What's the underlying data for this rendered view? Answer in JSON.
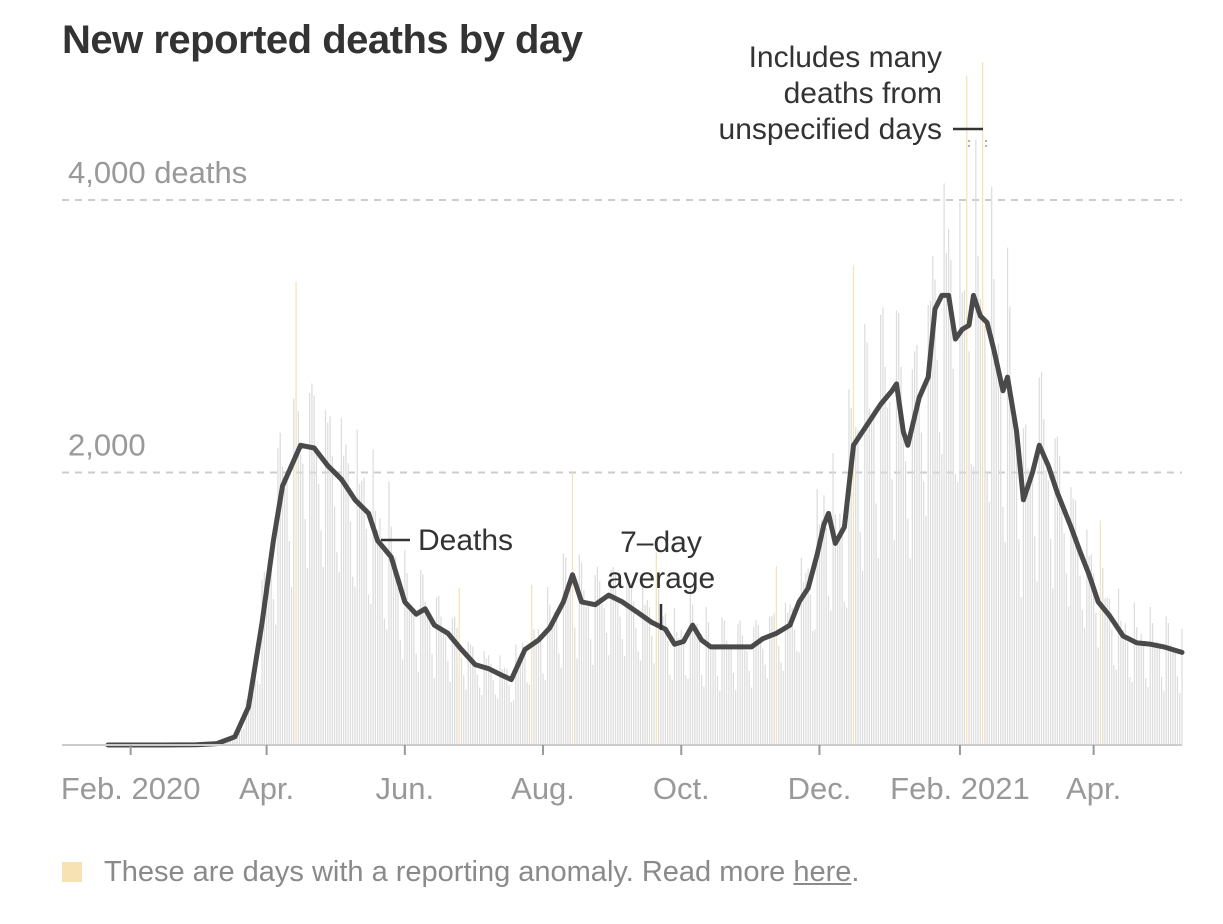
{
  "chart_data": {
    "type": "bar",
    "title": "New reported deaths by day",
    "xlabel": "",
    "ylabel": "",
    "ylim": [
      0,
      4000
    ],
    "y_ticks": [
      {
        "value": 2000,
        "label": "2,000"
      },
      {
        "value": 4000,
        "label": "4,000 deaths"
      }
    ],
    "x_ticks": [
      {
        "date": "2020-02-01",
        "label": "Feb. 2020"
      },
      {
        "date": "2020-04-01",
        "label": "Apr."
      },
      {
        "date": "2020-06-01",
        "label": "Jun."
      },
      {
        "date": "2020-08-01",
        "label": "Aug."
      },
      {
        "date": "2020-10-01",
        "label": "Oct."
      },
      {
        "date": "2020-12-01",
        "label": "Dec."
      },
      {
        "date": "2021-02-01",
        "label": "Feb. 2021"
      },
      {
        "date": "2021-04-01",
        "label": "Apr."
      }
    ],
    "grid": true,
    "x_range": [
      "2020-01-22",
      "2021-05-10"
    ],
    "colors": {
      "bars": "#dddddd",
      "anomaly_bars": "#f6e2b3",
      "line": "#4a4a4a",
      "grid": "#cccccc",
      "axis": "#cccccc"
    },
    "series": [
      {
        "name": "7-day average",
        "type": "line",
        "points": [
          [
            "2020-01-22",
            0
          ],
          [
            "2020-02-15",
            0
          ],
          [
            "2020-03-01",
            2
          ],
          [
            "2020-03-10",
            10
          ],
          [
            "2020-03-18",
            60
          ],
          [
            "2020-03-24",
            280
          ],
          [
            "2020-03-30",
            900
          ],
          [
            "2020-04-04",
            1500
          ],
          [
            "2020-04-08",
            1900
          ],
          [
            "2020-04-12",
            2050
          ],
          [
            "2020-04-16",
            2200
          ],
          [
            "2020-04-22",
            2180
          ],
          [
            "2020-04-28",
            2050
          ],
          [
            "2020-05-04",
            1950
          ],
          [
            "2020-05-10",
            1800
          ],
          [
            "2020-05-16",
            1700
          ],
          [
            "2020-05-20",
            1500
          ],
          [
            "2020-05-26",
            1380
          ],
          [
            "2020-06-01",
            1050
          ],
          [
            "2020-06-06",
            960
          ],
          [
            "2020-06-10",
            1000
          ],
          [
            "2020-06-14",
            880
          ],
          [
            "2020-06-20",
            820
          ],
          [
            "2020-06-26",
            700
          ],
          [
            "2020-07-02",
            590
          ],
          [
            "2020-07-08",
            560
          ],
          [
            "2020-07-14",
            510
          ],
          [
            "2020-07-18",
            480
          ],
          [
            "2020-07-24",
            700
          ],
          [
            "2020-07-30",
            770
          ],
          [
            "2020-08-04",
            860
          ],
          [
            "2020-08-10",
            1050
          ],
          [
            "2020-08-14",
            1250
          ],
          [
            "2020-08-18",
            1050
          ],
          [
            "2020-08-24",
            1030
          ],
          [
            "2020-08-30",
            1100
          ],
          [
            "2020-09-05",
            1050
          ],
          [
            "2020-09-12",
            970
          ],
          [
            "2020-09-18",
            900
          ],
          [
            "2020-09-24",
            850
          ],
          [
            "2020-09-28",
            740
          ],
          [
            "2020-10-02",
            760
          ],
          [
            "2020-10-06",
            880
          ],
          [
            "2020-10-10",
            770
          ],
          [
            "2020-10-14",
            720
          ],
          [
            "2020-10-20",
            720
          ],
          [
            "2020-10-26",
            720
          ],
          [
            "2020-11-01",
            720
          ],
          [
            "2020-11-06",
            780
          ],
          [
            "2020-11-12",
            820
          ],
          [
            "2020-11-18",
            880
          ],
          [
            "2020-11-22",
            1050
          ],
          [
            "2020-11-26",
            1150
          ],
          [
            "2020-11-30",
            1400
          ],
          [
            "2020-12-03",
            1620
          ],
          [
            "2020-12-05",
            1700
          ],
          [
            "2020-12-08",
            1480
          ],
          [
            "2020-12-12",
            1600
          ],
          [
            "2020-12-16",
            2200
          ],
          [
            "2020-12-22",
            2350
          ],
          [
            "2020-12-28",
            2500
          ],
          [
            "2021-01-02",
            2600
          ],
          [
            "2021-01-04",
            2650
          ],
          [
            "2021-01-07",
            2300
          ],
          [
            "2021-01-09",
            2200
          ],
          [
            "2021-01-14",
            2550
          ],
          [
            "2021-01-18",
            2700
          ],
          [
            "2021-01-21",
            3200
          ],
          [
            "2021-01-24",
            3300
          ],
          [
            "2021-01-27",
            3300
          ],
          [
            "2021-01-30",
            2980
          ],
          [
            "2021-02-02",
            3050
          ],
          [
            "2021-02-05",
            3080
          ],
          [
            "2021-02-07",
            3300
          ],
          [
            "2021-02-10",
            3150
          ],
          [
            "2021-02-13",
            3100
          ],
          [
            "2021-02-16",
            2900
          ],
          [
            "2021-02-20",
            2600
          ],
          [
            "2021-02-22",
            2700
          ],
          [
            "2021-02-26",
            2300
          ],
          [
            "2021-03-01",
            1800
          ],
          [
            "2021-03-05",
            2000
          ],
          [
            "2021-03-08",
            2200
          ],
          [
            "2021-03-12",
            2050
          ],
          [
            "2021-03-16",
            1850
          ],
          [
            "2021-03-22",
            1600
          ],
          [
            "2021-03-26",
            1420
          ],
          [
            "2021-03-30",
            1250
          ],
          [
            "2021-04-03",
            1050
          ],
          [
            "2021-04-08",
            950
          ],
          [
            "2021-04-14",
            800
          ],
          [
            "2021-04-20",
            750
          ],
          [
            "2021-04-26",
            740
          ],
          [
            "2021-05-02",
            720
          ],
          [
            "2021-05-06",
            700
          ],
          [
            "2021-05-10",
            680
          ]
        ]
      }
    ],
    "anomaly_dates": [
      "2020-04-14",
      "2020-06-25",
      "2020-07-27",
      "2020-08-14",
      "2020-09-20",
      "2020-11-12",
      "2020-12-16",
      "2021-02-04",
      "2021-02-11",
      "2021-04-04"
    ],
    "annotations": {
      "deaths_label": "Deaths",
      "average_label_line1": "7–day",
      "average_label_line2": "average",
      "anomaly_note_line1": "Includes many",
      "anomaly_note_line2": "deaths from",
      "anomaly_note_line3": "unspecified days"
    }
  },
  "legend": {
    "text": "These are days with a reporting anomaly. Read more ",
    "link_text": "here",
    "trailing": "."
  }
}
